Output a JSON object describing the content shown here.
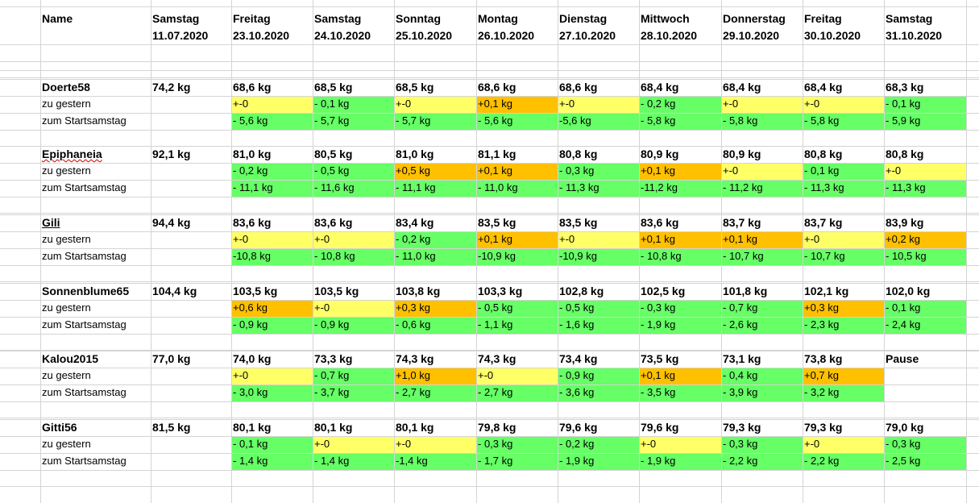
{
  "header": {
    "name_label": "Name",
    "columns": [
      {
        "day": "Samstag",
        "date": "11.07.2020"
      },
      {
        "day": "Freitag",
        "date": "23.10.2020"
      },
      {
        "day": "Samstag",
        "date": "24.10.2020"
      },
      {
        "day": "Sonntag",
        "date": "25.10.2020"
      },
      {
        "day": "Montag",
        "date": "26.10.2020"
      },
      {
        "day": "Dienstag",
        "date": "27.10.2020"
      },
      {
        "day": "Mittwoch",
        "date": "28.10.2020"
      },
      {
        "day": "Donnerstag",
        "date": "29.10.2020"
      },
      {
        "day": "Freitag",
        "date": "30.10.2020"
      },
      {
        "day": "Samstag",
        "date": "31.10.2020"
      }
    ]
  },
  "colors": {
    "green": "#66ff66",
    "yellow": "#ffff66",
    "orange": "#ffc000",
    "gridline": "#d4d4d4"
  },
  "blocks": [
    {
      "name": "Doerte58",
      "start": "74,2 kg",
      "weights": [
        "68,6 kg",
        "68,5 kg",
        "68,5 kg",
        "68,6 kg",
        "68,6 kg",
        "68,4 kg",
        "68,4 kg",
        "68,4 kg",
        "68,3 kg"
      ],
      "zu_gestern_label": "zu gestern",
      "zu_gestern": [
        [
          "+-0",
          "y"
        ],
        [
          "- 0,1 kg",
          "g"
        ],
        [
          "+-0",
          "y"
        ],
        [
          "+0,1 kg",
          "o"
        ],
        [
          "+-0",
          "y"
        ],
        [
          "- 0,2 kg",
          "g"
        ],
        [
          "+-0",
          "y"
        ],
        [
          "+-0",
          "y"
        ],
        [
          "- 0,1 kg",
          "g"
        ]
      ],
      "start_label": "zum Startsamstag",
      "zum_start": [
        [
          "- 5,6 kg",
          "g"
        ],
        [
          "- 5,7 kg",
          "g"
        ],
        [
          "- 5,7 kg",
          "g"
        ],
        [
          "- 5,6 kg",
          "g"
        ],
        [
          "-5,6 kg",
          "g"
        ],
        [
          "- 5,8 kg",
          "g"
        ],
        [
          "- 5,8 kg",
          "g"
        ],
        [
          "- 5,8 kg",
          "g"
        ],
        [
          "- 5,9 kg",
          "g"
        ]
      ]
    },
    {
      "name": "Epiphaneia",
      "start": "92,1 kg",
      "weights": [
        "81,0 kg",
        "80,5 kg",
        "81,0 kg",
        "81,1 kg",
        "80,8 kg",
        "80,9 kg",
        "80,9 kg",
        "80,8 kg",
        "80,8 kg"
      ],
      "zu_gestern_label": "zu gestern",
      "zu_gestern": [
        [
          "-  0,2 kg",
          "g"
        ],
        [
          "-   0,5 kg",
          "g"
        ],
        [
          "+0,5 kg",
          "o"
        ],
        [
          "+0,1 kg",
          "o"
        ],
        [
          "-   0,3 kg",
          "g"
        ],
        [
          "+0,1 kg",
          "o"
        ],
        [
          "+-0",
          "y"
        ],
        [
          "-  0,1 kg",
          "g"
        ],
        [
          "+-0",
          "y"
        ]
      ],
      "start_label": "zum Startsamstag",
      "zum_start": [
        [
          "- 11,1 kg",
          "g"
        ],
        [
          "- 11,6 kg",
          "g"
        ],
        [
          "- 11,1 kg",
          "g"
        ],
        [
          "- 11,0 kg",
          "g"
        ],
        [
          "- 11,3 kg",
          "g"
        ],
        [
          "-11,2 kg",
          "g"
        ],
        [
          "- 11,2 kg",
          "g"
        ],
        [
          "- 11,3 kg",
          "g"
        ],
        [
          "- 11,3 kg",
          "g"
        ]
      ]
    },
    {
      "name": "Gili",
      "start": "94,4 kg",
      "weights": [
        "83,6 kg",
        "83,6 kg",
        "83,4 kg",
        "83,5 kg",
        "83,5 kg",
        "83,6 kg",
        "83,7 kg",
        "83,7 kg",
        "83,9 kg"
      ],
      "zu_gestern_label": "zu gestern",
      "zu_gestern": [
        [
          "+-0",
          "y"
        ],
        [
          "+-0",
          "y"
        ],
        [
          "-  0,2 kg",
          "g"
        ],
        [
          "+0,1 kg",
          "o"
        ],
        [
          "+-0",
          "y"
        ],
        [
          "+0,1 kg",
          "o"
        ],
        [
          "+0,1 kg",
          "o"
        ],
        [
          "+-0",
          "y"
        ],
        [
          "+0,2 kg",
          "o"
        ]
      ],
      "start_label": "zum Startsamstag",
      "zum_start": [
        [
          "-10,8 kg",
          "g"
        ],
        [
          "- 10,8 kg",
          "g"
        ],
        [
          "- 11,0 kg",
          "g"
        ],
        [
          "-10,9 kg",
          "g"
        ],
        [
          "-10,9 kg",
          "g"
        ],
        [
          "- 10,8 kg",
          "g"
        ],
        [
          "- 10,7 kg",
          "g"
        ],
        [
          "- 10,7 kg",
          "g"
        ],
        [
          "- 10,5 kg",
          "g"
        ]
      ]
    },
    {
      "name": "Sonnenblume65",
      "start": "104,4 kg",
      "weights": [
        "103,5 kg",
        "103,5 kg",
        "103,8 kg",
        "103,3 kg",
        "102,8 kg",
        "102,5 kg",
        "101,8 kg",
        "102,1 kg",
        "102,0 kg"
      ],
      "zu_gestern_label": "zu gestern",
      "zu_gestern": [
        [
          "+0,6 kg",
          "o"
        ],
        [
          "+-0",
          "y"
        ],
        [
          "+0,3 kg",
          "o"
        ],
        [
          "- 0,5 kg",
          "g"
        ],
        [
          "- 0,5 kg",
          "g"
        ],
        [
          "- 0,3 kg",
          "g"
        ],
        [
          "- 0,7 kg",
          "g"
        ],
        [
          "+0,3 kg",
          "o"
        ],
        [
          "- 0,1 kg",
          "g"
        ]
      ],
      "start_label": "zum Startsamstag",
      "zum_start": [
        [
          "- 0,9 kg",
          "g"
        ],
        [
          "- 0,9 kg",
          "g"
        ],
        [
          "- 0,6 kg",
          "g"
        ],
        [
          "- 1,1 kg",
          "g"
        ],
        [
          "- 1,6 kg",
          "g"
        ],
        [
          "- 1,9 kg",
          "g"
        ],
        [
          "- 2,6 kg",
          "g"
        ],
        [
          "- 2,3 kg",
          "g"
        ],
        [
          "- 2,4 kg",
          "g"
        ]
      ]
    },
    {
      "name": "Kalou2015",
      "start": "77,0 kg",
      "weights": [
        "74,0 kg",
        "73,3 kg",
        "74,3 kg",
        "74,3 kg",
        "73,4 kg",
        "73,5 kg",
        "73,1 kg",
        "73,8 kg",
        "Pause"
      ],
      "zu_gestern_label": "zu gestern",
      "zu_gestern": [
        [
          "+-0",
          "y"
        ],
        [
          "- 0,7 kg",
          "g"
        ],
        [
          "+1,0 kg",
          "o"
        ],
        [
          "+-0",
          "y"
        ],
        [
          "- 0,9 kg",
          "g"
        ],
        [
          "+0,1 kg",
          "o"
        ],
        [
          "- 0,4 kg",
          "g"
        ],
        [
          "+0,7 kg",
          "o"
        ],
        [
          "",
          ""
        ]
      ],
      "start_label": "zum Startsamstag",
      "zum_start": [
        [
          "- 3,0 kg",
          "g"
        ],
        [
          "- 3,7 kg",
          "g"
        ],
        [
          "- 2,7 kg",
          "g"
        ],
        [
          "- 2,7 kg",
          "g"
        ],
        [
          "- 3,6 kg",
          "g"
        ],
        [
          "- 3,5 kg",
          "g"
        ],
        [
          "- 3,9 kg",
          "g"
        ],
        [
          "- 3,2 kg",
          "g"
        ],
        [
          "",
          ""
        ]
      ]
    },
    {
      "name": "Gitti56",
      "start": "81,5 kg",
      "weights": [
        "80,1 kg",
        "80,1 kg",
        "80,1 kg",
        "79,8 kg",
        "79,6 kg",
        "79,6 kg",
        "79,3 kg",
        "79,3 kg",
        "79,0 kg"
      ],
      "zu_gestern_label": "zu gestern",
      "zu_gestern": [
        [
          "- 0,1 kg",
          "g"
        ],
        [
          "+-0",
          "y"
        ],
        [
          "+-0",
          "y"
        ],
        [
          "- 0,3 kg",
          "g"
        ],
        [
          "- 0,2 kg",
          "g"
        ],
        [
          "+-0",
          "y"
        ],
        [
          "- 0,3 kg",
          "g"
        ],
        [
          "+-0",
          "y"
        ],
        [
          "- 0,3 kg",
          "g"
        ]
      ],
      "start_label": "zum Startsamstag",
      "zum_start": [
        [
          "- 1,4 kg",
          "g"
        ],
        [
          "- 1,4 kg",
          "g"
        ],
        [
          "-1,4 kg",
          "g"
        ],
        [
          "- 1,7 kg",
          "g"
        ],
        [
          "- 1,9 kg",
          "g"
        ],
        [
          "- 1,9 kg",
          "g"
        ],
        [
          "- 2,2 kg",
          "g"
        ],
        [
          "- 2,2 kg",
          "g"
        ],
        [
          "- 2,5 kg",
          "g"
        ]
      ]
    }
  ]
}
